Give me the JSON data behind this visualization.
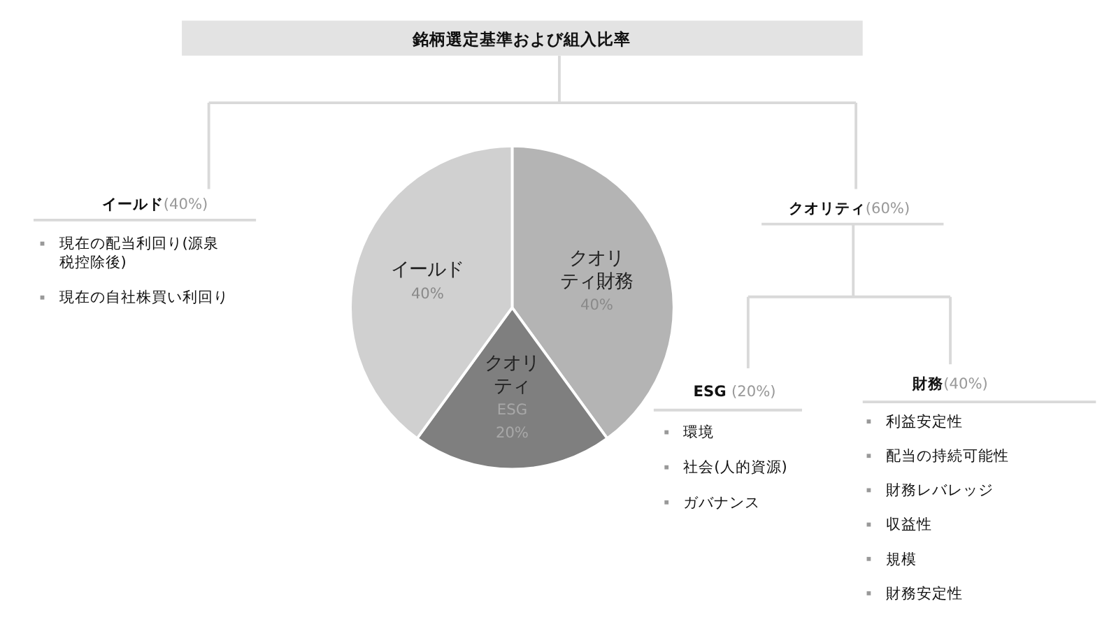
{
  "chart_data": {
    "type": "pie",
    "title": "銘柄選定基準および組入比率",
    "categories": [
      "クオリティ財務",
      "クオリティESG",
      "イールド"
    ],
    "values": [
      40,
      20,
      40
    ],
    "colors": [
      "#b4b4b4",
      "#7f7f7f",
      "#d0d0d0"
    ],
    "value_labels": [
      "40%",
      "20%",
      "40%"
    ],
    "annotations": [
      "イールド(40%)",
      "現在の配当利回り(源泉税控除後)",
      "現在の自社株買い利回り",
      "クオリティ(60%)",
      "ESG (20%)",
      "環境",
      "社会(人的資源)",
      "ガバナンス",
      "財務(40%)",
      "利益安定性",
      "配当の持続可能性",
      "財務レバレッジ",
      "収益性",
      "規模",
      "財務安定性"
    ]
  }
}
